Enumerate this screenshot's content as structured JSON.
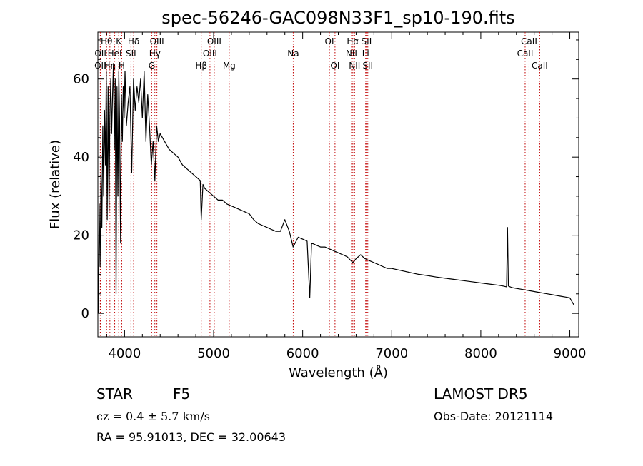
{
  "chart_data": {
    "type": "line",
    "title": "spec-56246-GAC098N33F1_sp10-190.fits",
    "xlabel": "Wavelength (Å)",
    "ylabel": "Flux (relative)",
    "xlim": [
      3700,
      9100
    ],
    "ylim": [
      -6,
      72
    ],
    "xticks": [
      4000,
      5000,
      6000,
      7000,
      8000,
      9000
    ],
    "xtick_labels": [
      "4000",
      "5000",
      "6000",
      "7000",
      "8000",
      "9000"
    ],
    "yticks": [
      0,
      20,
      40,
      60
    ],
    "ytick_labels": [
      "0",
      "20",
      "40",
      "60"
    ],
    "grid": false,
    "series": [
      {
        "x": [
          3705,
          3715,
          3725,
          3735,
          3745,
          3755,
          3765,
          3775,
          3785,
          3795,
          3805,
          3815,
          3825,
          3835,
          3845,
          3855,
          3865,
          3875,
          3885,
          3895,
          3905,
          3915,
          3925,
          3935,
          3945,
          3955,
          3965,
          3975,
          3985,
          3995,
          4005,
          4020,
          4040,
          4060,
          4080,
          4100,
          4120,
          4140,
          4160,
          4180,
          4200,
          4220,
          4240,
          4260,
          4280,
          4300,
          4320,
          4340,
          4360,
          4380,
          4400,
          4450,
          4500,
          4550,
          4600,
          4650,
          4700,
          4750,
          4800,
          4850,
          4861,
          4880,
          4900,
          4950,
          5000,
          5050,
          5100,
          5150,
          5200,
          5250,
          5300,
          5350,
          5400,
          5450,
          5500,
          5550,
          5600,
          5650,
          5700,
          5750,
          5800,
          5850,
          5893,
          5950,
          6000,
          6050,
          6080,
          6100,
          6150,
          6200,
          6250,
          6300,
          6350,
          6400,
          6450,
          6500,
          6563,
          6600,
          6650,
          6700,
          6750,
          6800,
          6850,
          6900,
          6950,
          7000,
          7100,
          7200,
          7300,
          7400,
          7500,
          7600,
          7700,
          7800,
          7900,
          8000,
          8100,
          8200,
          8250,
          8290,
          8300,
          8310,
          8350,
          8400,
          8450,
          8500,
          8550,
          8600,
          8650,
          8700,
          8750,
          8800,
          8850,
          8900,
          8950,
          9000,
          9050
        ],
        "y": [
          0,
          28,
          12,
          36,
          22,
          48,
          30,
          52,
          38,
          62,
          24,
          58,
          26,
          50,
          60,
          46,
          56,
          64,
          42,
          60,
          5,
          58,
          30,
          62,
          48,
          18,
          56,
          44,
          58,
          50,
          62,
          48,
          54,
          58,
          36,
          60,
          52,
          58,
          54,
          60,
          50,
          62,
          44,
          56,
          48,
          38,
          44,
          34,
          48,
          44,
          46,
          44,
          42,
          41,
          40,
          38,
          37,
          36,
          35,
          34,
          24,
          33,
          32,
          31,
          30,
          29,
          29,
          28,
          27.5,
          27,
          26.5,
          26,
          25.5,
          24,
          23,
          22.5,
          22,
          21.5,
          21,
          21,
          24,
          21,
          17,
          19.5,
          19,
          18.5,
          4,
          18,
          17.5,
          17,
          17,
          16.5,
          16,
          15.5,
          15,
          14.5,
          13,
          14,
          15,
          14,
          13.5,
          13,
          12.5,
          12,
          11.5,
          11.5,
          11,
          10.5,
          10,
          9.7,
          9.3,
          9,
          8.7,
          8.4,
          8.1,
          7.8,
          7.5,
          7.2,
          7,
          6.8,
          22,
          7,
          6.6,
          6.4,
          6.2,
          6,
          5.8,
          5.6,
          5.4,
          5.2,
          5,
          4.8,
          4.6,
          4.4,
          4.2,
          4,
          2
        ]
      }
    ],
    "line_markers": [
      {
        "label": "Hθ",
        "wave": 3798,
        "row": 0
      },
      {
        "label": "OII",
        "wave": 3727,
        "row": 2
      },
      {
        "label": "OII",
        "wave": 3729,
        "row": 1
      },
      {
        "label": "Hη",
        "wave": 3835,
        "row": 2
      },
      {
        "label": "HeI",
        "wave": 3889,
        "row": 1
      },
      {
        "label": "K",
        "wave": 3934,
        "row": 0
      },
      {
        "label": "H",
        "wave": 3968,
        "row": 2
      },
      {
        "label": "Hδ",
        "wave": 4102,
        "row": 0
      },
      {
        "label": "SII",
        "wave": 4072,
        "row": 1
      },
      {
        "label": "OIII",
        "wave": 4363,
        "row": 0
      },
      {
        "label": "Hγ",
        "wave": 4340,
        "row": 1
      },
      {
        "label": "G",
        "wave": 4305,
        "row": 2
      },
      {
        "label": "Hβ",
        "wave": 4861,
        "row": 2
      },
      {
        "label": "OIII",
        "wave": 5007,
        "row": 0
      },
      {
        "label": "OIII",
        "wave": 4959,
        "row": 1
      },
      {
        "label": "Mg",
        "wave": 5175,
        "row": 2
      },
      {
        "label": "Na",
        "wave": 5894,
        "row": 1
      },
      {
        "label": "OI",
        "wave": 6300,
        "row": 0
      },
      {
        "label": "OI",
        "wave": 6363,
        "row": 2
      },
      {
        "label": "Hα",
        "wave": 6563,
        "row": 0
      },
      {
        "label": "NII",
        "wave": 6548,
        "row": 1
      },
      {
        "label": "NII",
        "wave": 6583,
        "row": 2
      },
      {
        "label": "SII",
        "wave": 6716,
        "row": 0
      },
      {
        "label": "SII",
        "wave": 6731,
        "row": 2
      },
      {
        "label": "Li",
        "wave": 6707,
        "row": 1
      },
      {
        "label": "CaII",
        "wave": 8542,
        "row": 0
      },
      {
        "label": "CaII",
        "wave": 8498,
        "row": 1
      },
      {
        "label": "CaII",
        "wave": 8662,
        "row": 2
      }
    ]
  },
  "info": {
    "object_class": "STAR",
    "subclass": "F5",
    "redshift": "cz = 0.4 ± 5.7 km/s",
    "survey": "LAMOST DR5",
    "obs_date": "Obs-Date: 20121114",
    "coords": "RA =  95.91013, DEC =  32.00643"
  },
  "colors": {
    "spectrum": "#000000",
    "line_marker": "#c00000",
    "axes": "#000000"
  }
}
